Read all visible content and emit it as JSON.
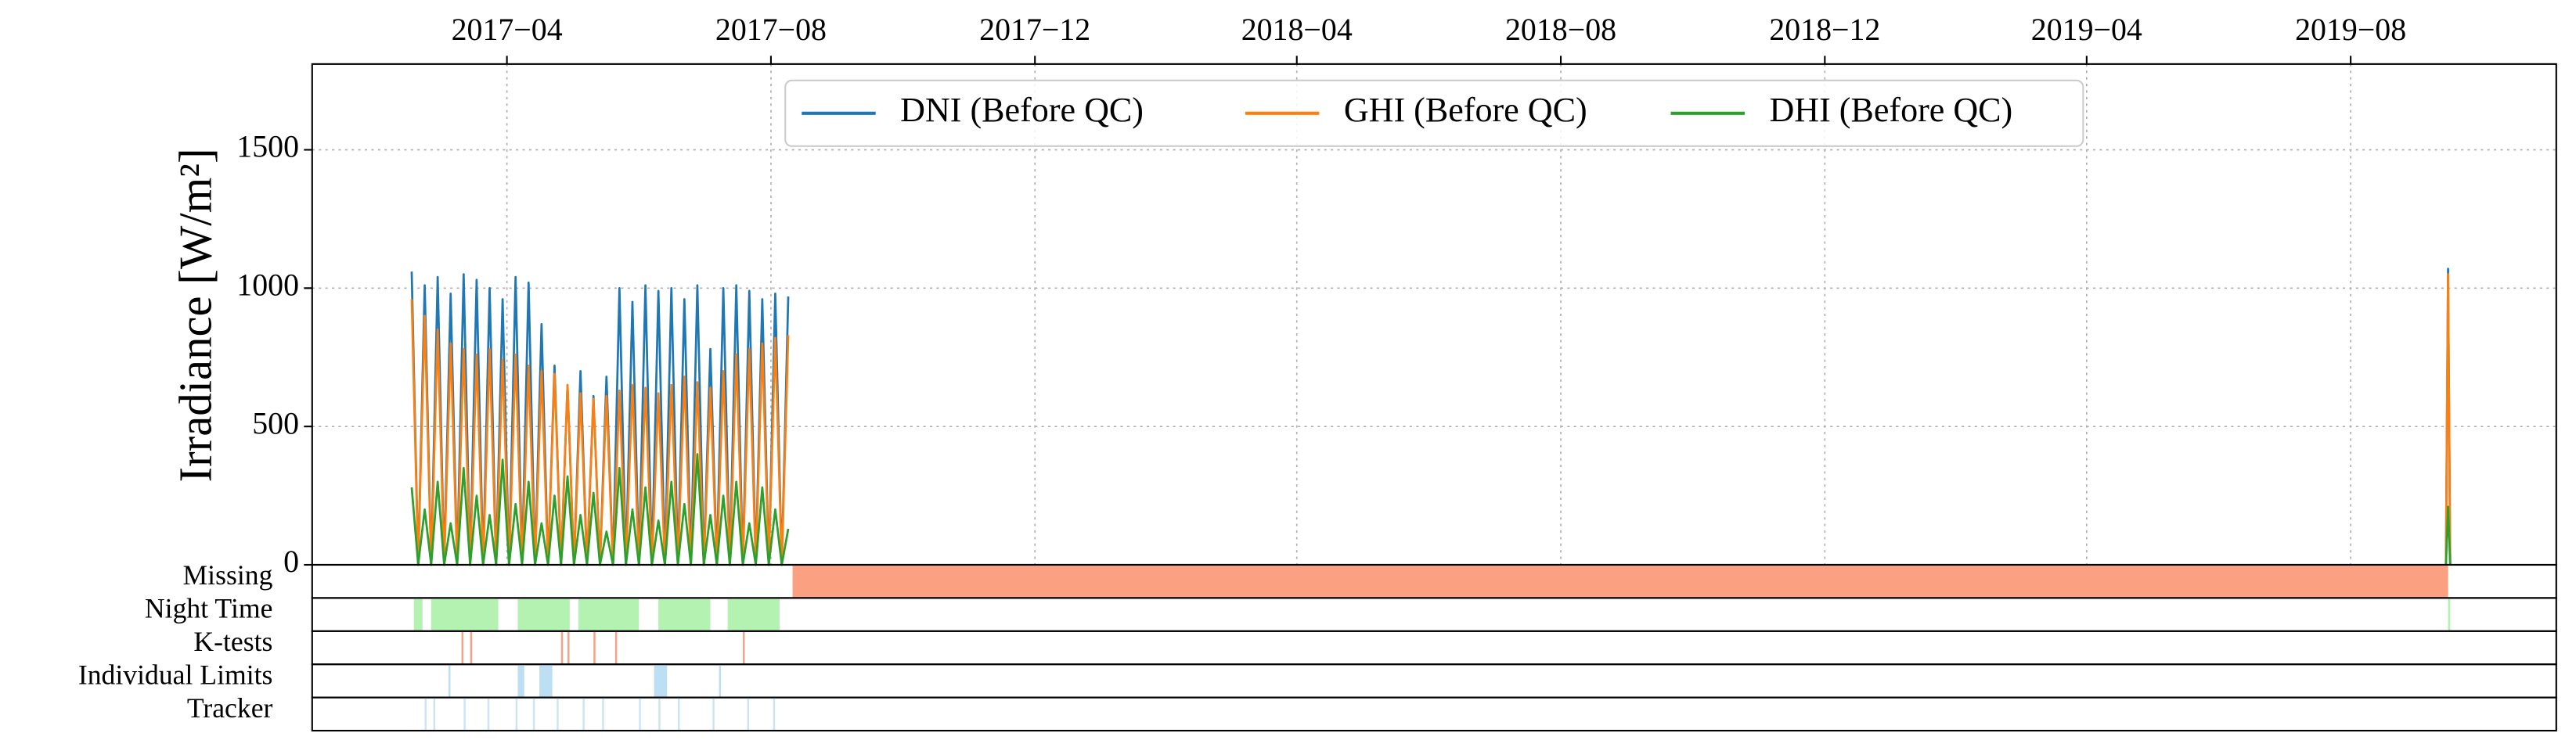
{
  "chart_data": {
    "type": "line",
    "ylabel": "Irradiance [W/m²]",
    "x": [
      "2017-02-16",
      "2017-02-19",
      "2017-02-22",
      "2017-02-25",
      "2017-02-28",
      "2017-03-03",
      "2017-03-06",
      "2017-03-09",
      "2017-03-12",
      "2017-03-15",
      "2017-03-18",
      "2017-03-21",
      "2017-03-24",
      "2017-03-27",
      "2017-03-30",
      "2017-04-02",
      "2017-04-05",
      "2017-04-08",
      "2017-04-11",
      "2017-04-14",
      "2017-04-17",
      "2017-04-20",
      "2017-04-23",
      "2017-04-26",
      "2017-04-29",
      "2017-05-02",
      "2017-05-05",
      "2017-05-08",
      "2017-05-11",
      "2017-05-14",
      "2017-05-17",
      "2017-05-20",
      "2017-05-23",
      "2017-05-26",
      "2017-05-29",
      "2017-06-01",
      "2017-06-04",
      "2017-06-07",
      "2017-06-10",
      "2017-06-13",
      "2017-06-16",
      "2017-06-19",
      "2017-06-22",
      "2017-06-25",
      "2017-06-28",
      "2017-07-01",
      "2017-07-04",
      "2017-07-07",
      "2017-07-10",
      "2017-07-13",
      "2017-07-16",
      "2017-07-19",
      "2017-07-22",
      "2017-07-25",
      "2017-07-28",
      "2017-07-31",
      "2017-08-03",
      "2017-08-06",
      "2017-08-09",
      "2018-06-01",
      "2019-09-14",
      "2019-09-15",
      "2019-09-16"
    ],
    "series": [
      {
        "name": "DNI (Before QC)",
        "color": "#1f77b4",
        "values": [
          1060,
          0,
          1010,
          0,
          1040,
          0,
          980,
          0,
          1050,
          0,
          1030,
          0,
          1000,
          0,
          960,
          0,
          1040,
          0,
          1020,
          0,
          870,
          0,
          720,
          0,
          650,
          0,
          700,
          0,
          610,
          0,
          680,
          0,
          1000,
          0,
          950,
          0,
          1010,
          0,
          990,
          0,
          1000,
          0,
          960,
          0,
          1010,
          0,
          780,
          0,
          1000,
          0,
          1010,
          0,
          990,
          0,
          960,
          0,
          980,
          0,
          970,
          null,
          0,
          1070,
          0
        ]
      },
      {
        "name": "GHI (Before QC)",
        "color": "#ff7f0e",
        "values": [
          960,
          0,
          900,
          0,
          850,
          0,
          800,
          0,
          780,
          0,
          760,
          0,
          780,
          0,
          740,
          0,
          760,
          0,
          720,
          0,
          700,
          0,
          690,
          0,
          650,
          0,
          620,
          0,
          600,
          0,
          610,
          0,
          630,
          0,
          650,
          0,
          640,
          0,
          620,
          0,
          650,
          0,
          680,
          0,
          660,
          0,
          640,
          0,
          700,
          0,
          760,
          0,
          780,
          0,
          800,
          0,
          820,
          0,
          830,
          null,
          0,
          1050,
          0
        ]
      },
      {
        "name": "DHI (Before QC)",
        "color": "#2ca02c",
        "values": [
          280,
          0,
          200,
          0,
          300,
          0,
          150,
          0,
          350,
          0,
          250,
          0,
          180,
          0,
          380,
          0,
          220,
          0,
          300,
          0,
          150,
          0,
          250,
          0,
          320,
          0,
          180,
          0,
          260,
          0,
          120,
          0,
          350,
          0,
          200,
          0,
          280,
          0,
          160,
          0,
          300,
          0,
          220,
          0,
          400,
          0,
          180,
          0,
          250,
          0,
          300,
          0,
          150,
          0,
          280,
          0,
          200,
          0,
          130,
          null,
          0,
          210,
          0
        ]
      }
    ],
    "xlim": [
      "2017-01-01",
      "2019-11-04"
    ],
    "xticks": [
      {
        "value": "2017-04",
        "label": "2017−04"
      },
      {
        "value": "2017-08",
        "label": "2017−08"
      },
      {
        "value": "2017-12",
        "label": "2017−12"
      },
      {
        "value": "2018-04",
        "label": "2018−04"
      },
      {
        "value": "2018-08",
        "label": "2018−08"
      },
      {
        "value": "2018-12",
        "label": "2018−12"
      },
      {
        "value": "2019-04",
        "label": "2019−04"
      },
      {
        "value": "2019-08",
        "label": "2019−08"
      }
    ],
    "ylim": [
      0,
      1810
    ],
    "yticks": [
      0,
      500,
      1000,
      1500
    ],
    "grid": true,
    "legend": "upper center",
    "flags": [
      {
        "name": "Missing",
        "color": "#fca082",
        "intervals": [
          [
            "2017-08-11",
            "2019-09-15"
          ]
        ]
      },
      {
        "name": "Night Time",
        "color": "#b3f2b0",
        "intervals": [
          [
            "2017-02-17",
            "2017-02-21"
          ],
          [
            "2017-02-25",
            "2017-03-28"
          ],
          [
            "2017-04-06",
            "2017-04-30"
          ],
          [
            "2017-05-04",
            "2017-06-01"
          ],
          [
            "2017-06-10",
            "2017-07-04"
          ],
          [
            "2017-07-12",
            "2017-08-05"
          ],
          [
            "2019-09-15",
            "2019-09-16"
          ]
        ]
      },
      {
        "name": "K-tests",
        "color": "#f4a288",
        "intervals": [
          [
            "2017-03-11",
            "2017-03-11"
          ],
          [
            "2017-03-15",
            "2017-03-15"
          ],
          [
            "2017-04-26",
            "2017-04-26"
          ],
          [
            "2017-04-29",
            "2017-04-29"
          ],
          [
            "2017-05-11",
            "2017-05-11"
          ],
          [
            "2017-05-21",
            "2017-05-21"
          ],
          [
            "2017-07-19",
            "2017-07-19"
          ]
        ]
      },
      {
        "name": "Individual Limits",
        "color": "#bcdff3",
        "intervals": [
          [
            "2017-03-05",
            "2017-03-05"
          ],
          [
            "2017-04-06",
            "2017-04-09"
          ],
          [
            "2017-04-16",
            "2017-04-22"
          ],
          [
            "2017-06-08",
            "2017-06-14"
          ],
          [
            "2017-07-08",
            "2017-07-08"
          ]
        ]
      },
      {
        "name": "Tracker",
        "color": "#cde5f2",
        "intervals": [
          [
            "2017-02-22",
            "2017-02-22"
          ],
          [
            "2017-02-26",
            "2017-02-26"
          ],
          [
            "2017-03-12",
            "2017-03-12"
          ],
          [
            "2017-03-23",
            "2017-03-23"
          ],
          [
            "2017-04-05",
            "2017-04-05"
          ],
          [
            "2017-04-13",
            "2017-04-13"
          ],
          [
            "2017-04-24",
            "2017-04-24"
          ],
          [
            "2017-05-06",
            "2017-05-06"
          ],
          [
            "2017-05-15",
            "2017-05-15"
          ],
          [
            "2017-06-01",
            "2017-06-01"
          ],
          [
            "2017-06-10",
            "2017-06-10"
          ],
          [
            "2017-06-19",
            "2017-06-19"
          ],
          [
            "2017-07-05",
            "2017-07-05"
          ],
          [
            "2017-07-21",
            "2017-07-21"
          ],
          [
            "2017-08-02",
            "2017-08-02"
          ]
        ]
      }
    ]
  }
}
